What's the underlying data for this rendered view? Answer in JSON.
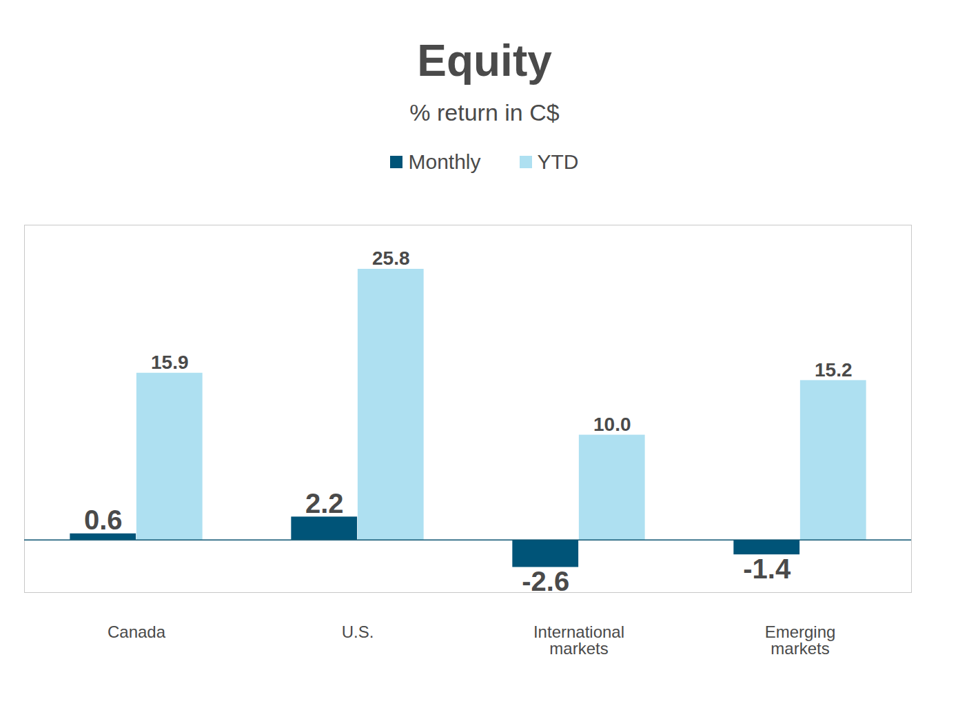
{
  "chart_data": {
    "type": "bar",
    "title": "Equity",
    "subtitle": "% return in C$",
    "categories": [
      "Canada",
      "U.S.",
      "International markets",
      "Emerging markets"
    ],
    "series": [
      {
        "name": "Monthly",
        "color": "#005478",
        "values": [
          0.6,
          2.2,
          -2.6,
          -1.4
        ]
      },
      {
        "name": "YTD",
        "color": "#aee0f1",
        "values": [
          15.9,
          25.8,
          10.0,
          15.2
        ],
        "value_labels": [
          "15.9",
          "25.8",
          "10.0",
          "15.2"
        ]
      }
    ],
    "ylim": [
      -5,
      30
    ],
    "data_labels": true,
    "tick_labels": "x",
    "legend": "top"
  }
}
